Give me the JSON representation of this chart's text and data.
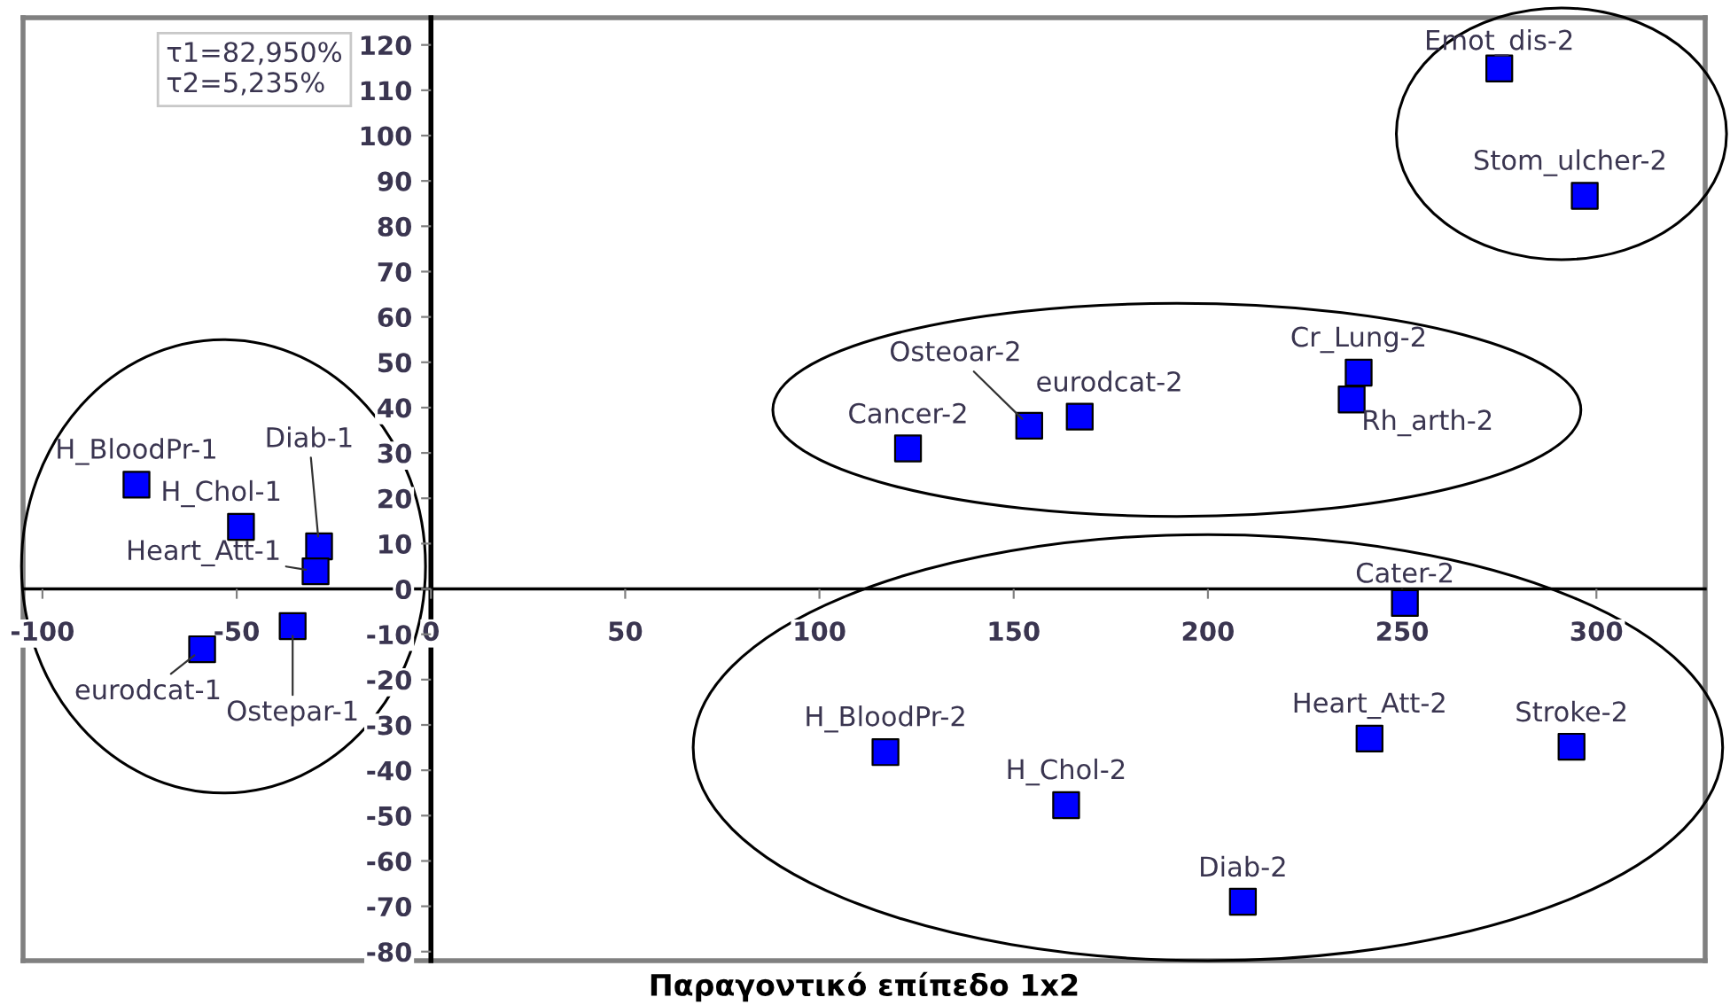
{
  "chart_data": {
    "type": "scatter",
    "xlabel": "Παραγοντικό επίπεδο 1x2",
    "x": [
      -75.8,
      -48.9,
      -28.8,
      -29.7,
      -58.9,
      -35.6,
      122.8,
      154,
      167,
      238.8,
      237,
      275,
      297,
      250.7,
      241.6,
      293.6,
      209,
      117,
      163.5
    ],
    "series": [
      {
        "color": "#0000ff",
        "values": [
          23,
          13.7,
          9.4,
          3.9,
          -13.3,
          -8.2,
          31,
          36,
          38,
          47.7,
          41.8,
          114.8,
          86.7,
          -3.1,
          -33,
          -34.8,
          -69,
          -36,
          -47.7
        ]
      }
    ],
    "marker": "square",
    "grid": false,
    "xlim": [
      -105,
      328
    ],
    "ylim": [
      -82,
      126
    ],
    "xticks": [
      -100,
      -50,
      0,
      50,
      100,
      150,
      200,
      250,
      300
    ],
    "yticks": [
      -80,
      -70,
      -60,
      -50,
      -40,
      -30,
      -20,
      -10,
      0,
      10,
      20,
      30,
      40,
      50,
      60,
      70,
      80,
      90,
      100,
      110,
      120
    ],
    "annotations": [
      "τ1=82,950%\nτ2=5,235%",
      {
        "text": "H_BloodPr-1",
        "x": -75.8,
        "y": 23
      },
      {
        "text": "H_Chol-1",
        "x": -48.9,
        "y": 13.7
      },
      {
        "text": "Diab-1",
        "x": -28.8,
        "y": 9.4
      },
      {
        "text": "Heart_Att-1",
        "x": -29.7,
        "y": 3.9
      },
      {
        "text": "eurodcat-1",
        "x": -58.9,
        "y": -13.3
      },
      {
        "text": "Ostepar-1",
        "x": -35.6,
        "y": -8.2
      },
      {
        "text": "Cancer-2",
        "x": 122.8,
        "y": 31
      },
      {
        "text": "Osteoar-2",
        "x": 154,
        "y": 36
      },
      {
        "text": "eurodcat-2",
        "x": 167,
        "y": 38
      },
      {
        "text": "Cr_Lung-2",
        "x": 238.8,
        "y": 47.7
      },
      {
        "text": "Rh_arth-2",
        "x": 237,
        "y": 41.8
      },
      {
        "text": "Emot_dis-2",
        "x": 275,
        "y": 114.8
      },
      {
        "text": "Stom_ulcher-2",
        "x": 297,
        "y": 86.7
      },
      {
        "text": "Cater-2",
        "x": 250.7,
        "y": -3.1
      },
      {
        "text": "Heart_Att-2",
        "x": 241.6,
        "y": -33
      },
      {
        "text": "Stroke-2",
        "x": 293.6,
        "y": -34.8
      },
      {
        "text": "Diab-2",
        "x": 209,
        "y": -69
      },
      {
        "text": "H_BloodPr-2",
        "x": 117,
        "y": -36
      },
      {
        "text": "H_Chol-2",
        "x": 163.5,
        "y": -47.7
      }
    ]
  }
}
